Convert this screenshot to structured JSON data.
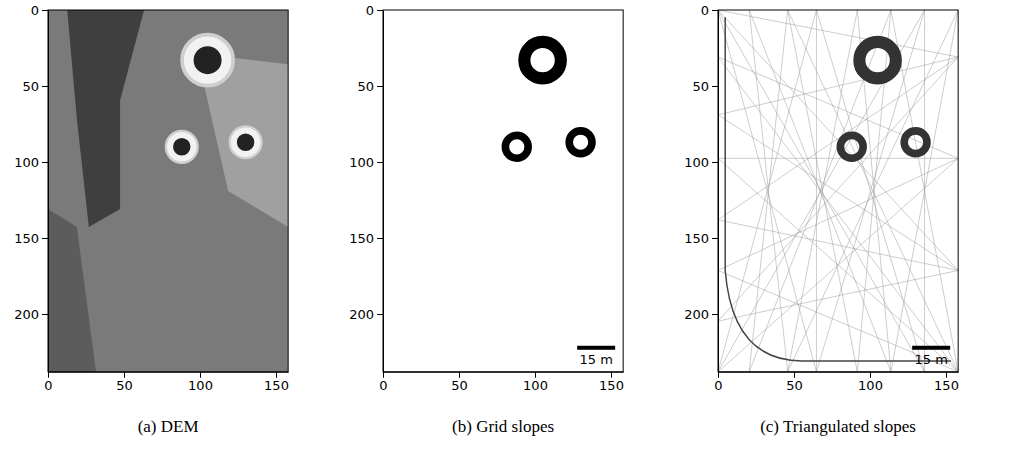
{
  "chart_data": [
    {
      "type": "dem",
      "caption": "(a) DEM",
      "xlim": [
        0,
        158
      ],
      "ylim": [
        0,
        238
      ],
      "xticks": [
        0,
        50,
        100,
        150
      ],
      "yticks": [
        0,
        50,
        100,
        150,
        200
      ],
      "color": "#2a2a2a",
      "craters": [
        {
          "x": 105,
          "y": 33,
          "r": 16
        },
        {
          "x": 88,
          "y": 90,
          "r": 10
        },
        {
          "x": 130,
          "y": 87,
          "r": 10
        }
      ]
    },
    {
      "type": "grid",
      "caption": "(b) Grid slopes",
      "xlim": [
        0,
        158
      ],
      "ylim": [
        0,
        238
      ],
      "xticks": [
        0,
        50,
        100,
        150
      ],
      "yticks": [
        0,
        50,
        100,
        150,
        200
      ],
      "color": "#000000",
      "craters": [
        {
          "x": 105,
          "y": 33,
          "r": 16
        },
        {
          "x": 88,
          "y": 90,
          "r": 10
        },
        {
          "x": 130,
          "y": 87,
          "r": 10
        }
      ],
      "scale_bar": {
        "length": 25,
        "label": "15 m"
      }
    },
    {
      "type": "mesh",
      "caption": "(c) Triangulated slopes",
      "xlim": [
        0,
        158
      ],
      "ylim": [
        0,
        238
      ],
      "xticks": [
        0,
        50,
        100,
        150
      ],
      "yticks": [
        0,
        50,
        100,
        150,
        200
      ],
      "color": "#333333",
      "craters": [
        {
          "x": 105,
          "y": 33,
          "r": 16
        },
        {
          "x": 88,
          "y": 90,
          "r": 10
        },
        {
          "x": 130,
          "y": 87,
          "r": 10
        }
      ],
      "scale_bar": {
        "length": 25,
        "label": "15 m"
      }
    }
  ]
}
